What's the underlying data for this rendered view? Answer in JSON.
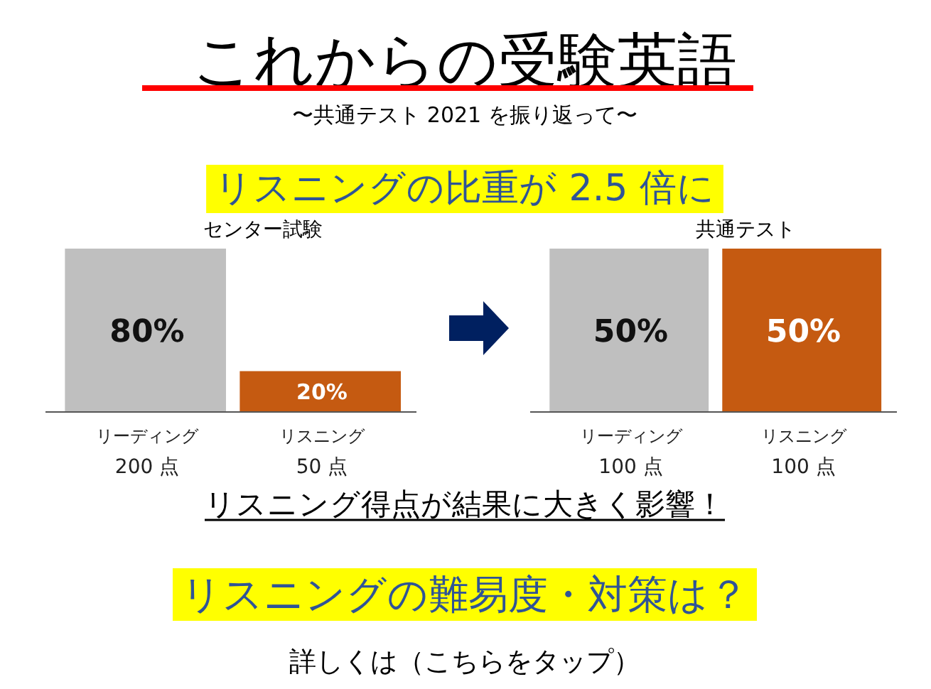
{
  "chart_data": [
    {
      "type": "other",
      "title": "これからの受験英語",
      "subtitle": "〜共通テスト 2021 を振り返って〜",
      "annotations": [
        "リスニングの比重が 2.5 倍に",
        "リスニング得点が結果に大きく影響！",
        "リスニングの難易度・対策は？",
        "詳しくは（こちらをタップ）"
      ]
    },
    {
      "type": "bar",
      "title": "センター試験",
      "categories": [
        "リーディング\n200 点",
        "リスニング\n50 点"
      ],
      "values": [
        80,
        20
      ],
      "value_labels": [
        "80%",
        "20%"
      ],
      "colors": [
        "#bfbfbf",
        "#c55a11"
      ]
    },
    {
      "type": "bar",
      "title": "共通テスト",
      "categories": [
        "リーディング\n100 点",
        "リスニング\n100 点"
      ],
      "values": [
        50,
        50
      ],
      "value_labels": [
        "50%",
        "50%"
      ],
      "colors": [
        "#bfbfbf",
        "#c55a11"
      ]
    }
  ]
}
